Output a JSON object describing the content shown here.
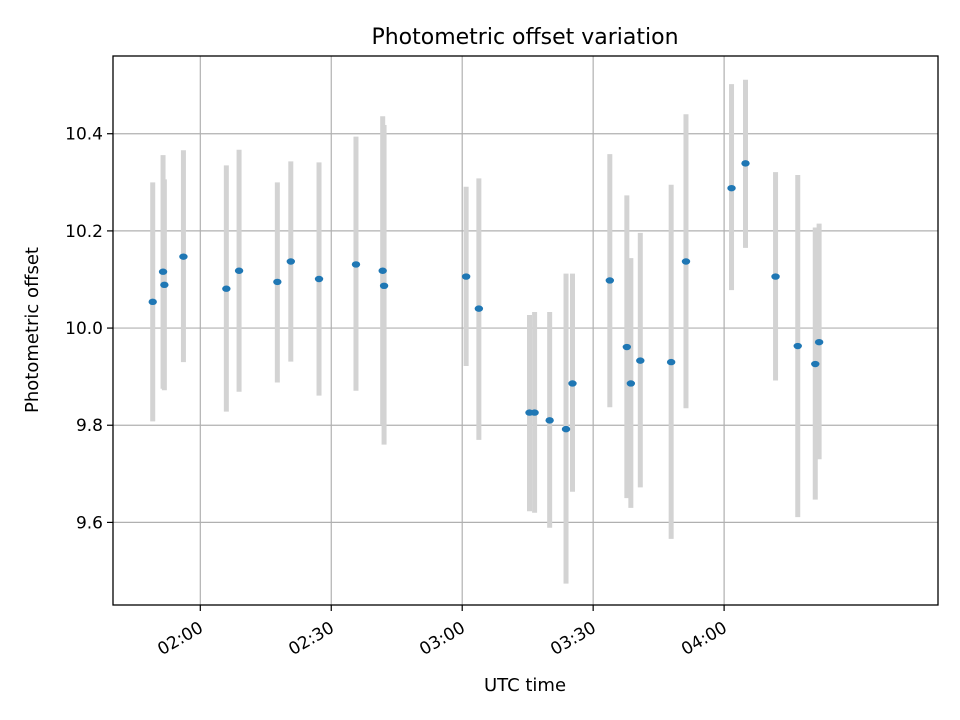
{
  "chart_data": {
    "type": "scatter",
    "title": "Photometric offset variation",
    "xlabel": "UTC time",
    "ylabel": "Photometric offset",
    "x_axis": "time",
    "xlim": [
      "01:40",
      "04:49"
    ],
    "ylim": [
      9.43,
      10.56
    ],
    "xticks": [
      "02:00",
      "02:30",
      "03:00",
      "03:30",
      "04:00"
    ],
    "yticks": [
      9.6,
      9.8,
      10.0,
      10.2,
      10.4
    ],
    "grid": true,
    "colors": {
      "point": "#1f77b4",
      "errorbar": "#d3d3d3",
      "grid": "#b0b0b0"
    },
    "points": [
      {
        "x": "01:49:06",
        "y": 10.054,
        "ylo": 9.808,
        "yhi": 10.3
      },
      {
        "x": "01:51:28",
        "y": 10.116,
        "ylo": 9.875,
        "yhi": 10.356
      },
      {
        "x": "01:51:46",
        "y": 10.089,
        "ylo": 9.872,
        "yhi": 10.306
      },
      {
        "x": "01:56:08",
        "y": 10.147,
        "ylo": 9.93,
        "yhi": 10.366
      },
      {
        "x": "02:05:58",
        "y": 10.081,
        "ylo": 9.828,
        "yhi": 10.335
      },
      {
        "x": "02:08:53",
        "y": 10.118,
        "ylo": 9.869,
        "yhi": 10.367
      },
      {
        "x": "02:17:39",
        "y": 10.095,
        "ylo": 9.888,
        "yhi": 10.3
      },
      {
        "x": "02:20:44",
        "y": 10.137,
        "ylo": 9.931,
        "yhi": 10.343
      },
      {
        "x": "02:27:12",
        "y": 10.101,
        "ylo": 9.861,
        "yhi": 10.341
      },
      {
        "x": "02:35:40",
        "y": 10.131,
        "ylo": 9.871,
        "yhi": 10.394
      },
      {
        "x": "02:41:47",
        "y": 10.118,
        "ylo": 9.8,
        "yhi": 10.436
      },
      {
        "x": "02:42:06",
        "y": 10.087,
        "ylo": 9.76,
        "yhi": 10.418
      },
      {
        "x": "03:00:54",
        "y": 10.106,
        "ylo": 9.922,
        "yhi": 10.291
      },
      {
        "x": "03:03:49",
        "y": 10.04,
        "ylo": 9.77,
        "yhi": 10.308
      },
      {
        "x": "03:15:25",
        "y": 9.826,
        "ylo": 9.623,
        "yhi": 10.027
      },
      {
        "x": "03:16:35",
        "y": 9.826,
        "ylo": 9.62,
        "yhi": 10.033
      },
      {
        "x": "03:20:02",
        "y": 9.81,
        "ylo": 9.589,
        "yhi": 10.033
      },
      {
        "x": "03:23:47",
        "y": 9.792,
        "ylo": 9.474,
        "yhi": 10.112
      },
      {
        "x": "03:25:16",
        "y": 9.886,
        "ylo": 9.663,
        "yhi": 10.112
      },
      {
        "x": "03:33:49",
        "y": 10.098,
        "ylo": 9.837,
        "yhi": 10.358
      },
      {
        "x": "03:37:43",
        "y": 9.961,
        "ylo": 9.65,
        "yhi": 10.273
      },
      {
        "x": "03:38:38",
        "y": 9.886,
        "ylo": 9.63,
        "yhi": 10.144
      },
      {
        "x": "03:40:48",
        "y": 9.933,
        "ylo": 9.672,
        "yhi": 10.196
      },
      {
        "x": "03:47:52",
        "y": 9.93,
        "ylo": 9.566,
        "yhi": 10.295
      },
      {
        "x": "03:51:16",
        "y": 10.137,
        "ylo": 9.835,
        "yhi": 10.44
      },
      {
        "x": "04:01:42",
        "y": 10.288,
        "ylo": 10.078,
        "yhi": 10.502
      },
      {
        "x": "04:04:54",
        "y": 10.339,
        "ylo": 10.165,
        "yhi": 10.511
      },
      {
        "x": "04:11:47",
        "y": 10.106,
        "ylo": 9.892,
        "yhi": 10.321
      },
      {
        "x": "04:16:52",
        "y": 9.963,
        "ylo": 9.611,
        "yhi": 10.315
      },
      {
        "x": "04:20:53",
        "y": 9.926,
        "ylo": 9.647,
        "yhi": 10.207
      },
      {
        "x": "04:21:46",
        "y": 9.971,
        "ylo": 9.73,
        "yhi": 10.215
      }
    ]
  }
}
